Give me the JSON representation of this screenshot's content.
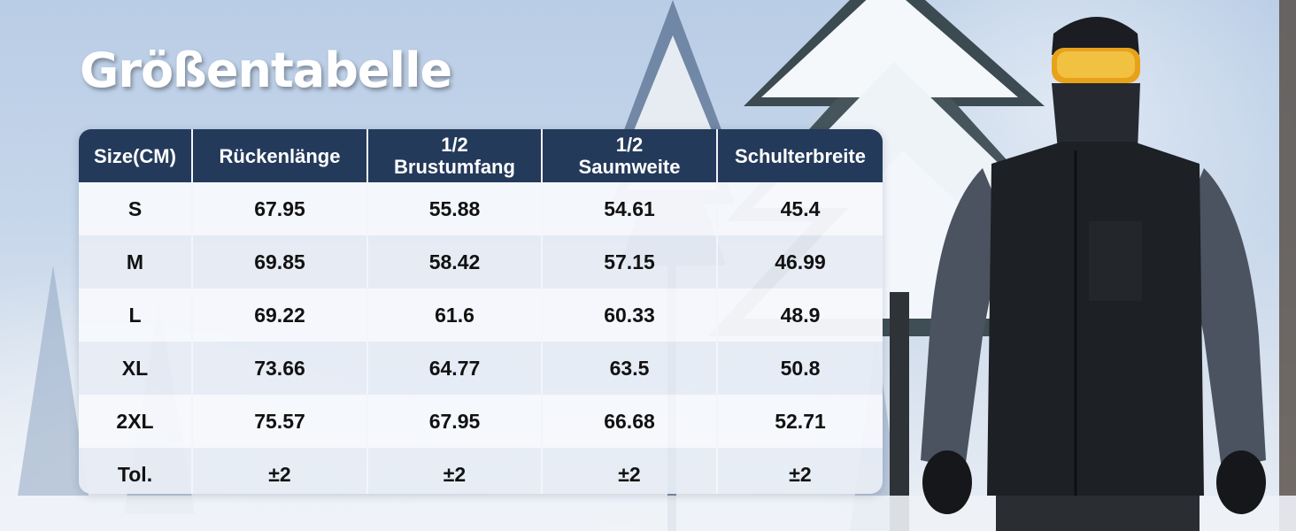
{
  "title": "Größentabelle",
  "table": {
    "headers": [
      "Size(CM)",
      "Rückenlänge",
      "1/2\nBrustumfang",
      "1/2\nSaumweite",
      "Schulterbreite"
    ],
    "rows": [
      [
        "S",
        "67.95",
        "55.88",
        "54.61",
        "45.4"
      ],
      [
        "M",
        "69.85",
        "58.42",
        "57.15",
        "46.99"
      ],
      [
        "L",
        "69.22",
        "61.6",
        "60.33",
        "48.9"
      ],
      [
        "XL",
        "73.66",
        "64.77",
        "63.5",
        "50.8"
      ],
      [
        "2XL",
        "75.57",
        "67.95",
        "66.68",
        "52.71"
      ],
      [
        "Tol.",
        "±2",
        "±2",
        "±2",
        "±2"
      ]
    ]
  },
  "colors": {
    "header_bg": "#243a5b",
    "header_text": "#ffffff",
    "row_light": "#f6f8fc",
    "row_shaded": "#e7ecf4",
    "cell_text": "#111111"
  }
}
